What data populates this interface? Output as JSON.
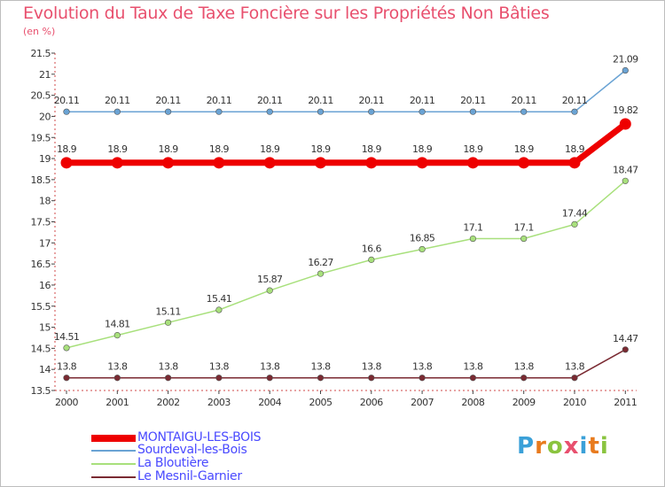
{
  "chart_data": {
    "type": "line",
    "title": "Evolution du Taux de Taxe Foncière sur les Propriétés Non Bâties",
    "subtitle": "(en %)",
    "xlabel": "",
    "ylabel": "",
    "x": [
      "2000",
      "2001",
      "2002",
      "2003",
      "2004",
      "2005",
      "2006",
      "2007",
      "2008",
      "2009",
      "2010",
      "2011"
    ],
    "ylim": [
      13.5,
      21.5
    ],
    "yticks": [
      "13.5",
      "14",
      "14.5",
      "15",
      "15.5",
      "16",
      "16.5",
      "17",
      "17.5",
      "18",
      "18.5",
      "19",
      "19.5",
      "20",
      "20.5",
      "21",
      "21.5"
    ],
    "grid": false,
    "legend_position": "bottom-left",
    "series": [
      {
        "name": "MONTAIGU-LES-BOIS",
        "color": "#ee0000",
        "emphasis": true,
        "values": [
          18.9,
          18.9,
          18.9,
          18.9,
          18.9,
          18.9,
          18.9,
          18.9,
          18.9,
          18.9,
          18.9,
          19.82
        ],
        "labels": [
          "18.9",
          "18.9",
          "18.9",
          "18.9",
          "18.9",
          "18.9",
          "18.9",
          "18.9",
          "18.9",
          "18.9",
          "18.9",
          "19.82"
        ]
      },
      {
        "name": "Sourdeval-les-Bois",
        "color": "#6aa3d4",
        "emphasis": false,
        "values": [
          20.11,
          20.11,
          20.11,
          20.11,
          20.11,
          20.11,
          20.11,
          20.11,
          20.11,
          20.11,
          20.11,
          21.09
        ],
        "labels": [
          "20.11",
          "20.11",
          "20.11",
          "20.11",
          "20.11",
          "20.11",
          "20.11",
          "20.11",
          "20.11",
          "20.11",
          "20.11",
          "21.09"
        ]
      },
      {
        "name": "La Bloutière",
        "color": "#a8e07c",
        "emphasis": false,
        "values": [
          14.51,
          14.81,
          15.11,
          15.41,
          15.87,
          16.27,
          16.6,
          16.85,
          17.1,
          17.1,
          17.44,
          18.47
        ],
        "labels": [
          "14.51",
          "14.81",
          "15.11",
          "15.41",
          "15.87",
          "16.27",
          "16.6",
          "16.85",
          "17.1",
          "17.1",
          "17.44",
          "18.47"
        ]
      },
      {
        "name": "Le Mesnil-Garnier",
        "color": "#7a2a32",
        "emphasis": false,
        "values": [
          13.8,
          13.8,
          13.8,
          13.8,
          13.8,
          13.8,
          13.8,
          13.8,
          13.8,
          13.8,
          13.8,
          14.47
        ],
        "labels": [
          "13.8",
          "13.8",
          "13.8",
          "13.8",
          "13.8",
          "13.8",
          "13.8",
          "13.8",
          "13.8",
          "13.8",
          "13.8",
          "14.47"
        ]
      }
    ]
  },
  "logo": {
    "letters": [
      "P",
      "r",
      "o",
      "x",
      "i",
      "t",
      "i"
    ],
    "colors": [
      "#3aa0d8",
      "#e87b1e",
      "#8ac43f",
      "#e8506e",
      "#3aa0d8",
      "#e87b1e",
      "#8ac43f"
    ]
  }
}
